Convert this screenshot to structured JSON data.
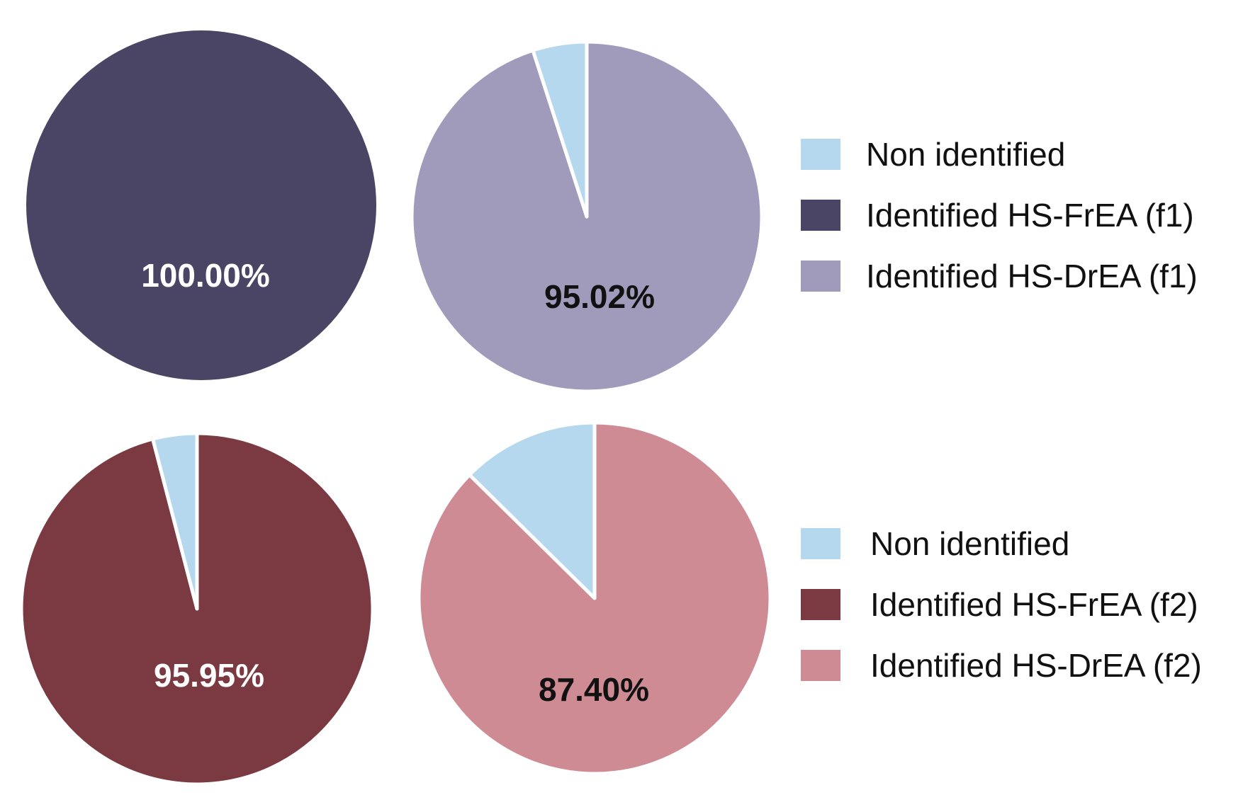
{
  "colors": {
    "non_identified": "#b5d8ef",
    "frea_f1": "#4a4465",
    "drea_f1": "#a09abb",
    "frea_f2": "#7b3a42",
    "drea_f2": "#cf8b93"
  },
  "chart_data": [
    {
      "type": "pie",
      "slices": [
        {
          "label": "Identified HS-FrEA (f1)",
          "value": 100.0,
          "color": "#4a4465"
        }
      ],
      "data_label": "100.00%",
      "data_label_color": "#ffffff"
    },
    {
      "type": "pie",
      "slices": [
        {
          "label": "Identified HS-DrEA (f1)",
          "value": 95.02,
          "color": "#a09abb"
        },
        {
          "label": "Non identified",
          "value": 4.98,
          "color": "#b5d8ef"
        }
      ],
      "data_label": "95.02%",
      "data_label_color": "#111111"
    },
    {
      "type": "pie",
      "slices": [
        {
          "label": "Identified HS-FrEA (f2)",
          "value": 95.95,
          "color": "#7b3a42"
        },
        {
          "label": "Non identified",
          "value": 4.05,
          "color": "#b5d8ef"
        }
      ],
      "data_label": "95.95%",
      "data_label_color": "#ffffff"
    },
    {
      "type": "pie",
      "slices": [
        {
          "label": "Identified HS-DrEA (f2)",
          "value": 87.4,
          "color": "#cf8b93"
        },
        {
          "label": "Non identified",
          "value": 12.6,
          "color": "#b5d8ef"
        }
      ],
      "data_label": "87.40%",
      "data_label_color": "#111111"
    }
  ],
  "legends": [
    {
      "entries": [
        {
          "label": "Non identified",
          "color": "#b5d8ef"
        },
        {
          "label": "Identified HS-FrEA (f1)",
          "color": "#4a4465"
        },
        {
          "label": "Identified HS-DrEA (f1)",
          "color": "#a09abb"
        }
      ]
    },
    {
      "entries": [
        {
          "label": "Non identified",
          "color": "#b5d8ef"
        },
        {
          "label": "Identified HS-FrEA (f2)",
          "color": "#7b3a42"
        },
        {
          "label": "Identified HS-DrEA (f2)",
          "color": "#cf8b93"
        }
      ]
    }
  ]
}
